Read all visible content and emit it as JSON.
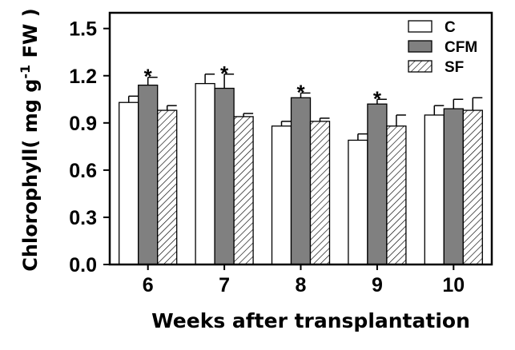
{
  "chart_data": {
    "type": "bar",
    "title": "",
    "xlabel": "Weeks after transplantation",
    "ylabel_main": "Chlorophyll( mg g",
    "ylabel_sup": "-1",
    "ylabel_tail": " FW )",
    "categories": [
      "6",
      "7",
      "8",
      "9",
      "10"
    ],
    "ylim": [
      0,
      1.6
    ],
    "yticks": [
      "0.0",
      "0.3",
      "0.6",
      "0.9",
      "1.2",
      "1.5"
    ],
    "ytick_values": [
      0,
      0.3,
      0.6,
      0.9,
      1.2,
      1.5
    ],
    "legend_position": "top-right",
    "grid": false,
    "series": [
      {
        "name": "C",
        "style": "white",
        "values": [
          1.03,
          1.15,
          0.88,
          0.79,
          0.95
        ],
        "errors": [
          0.04,
          0.06,
          0.03,
          0.04,
          0.06
        ]
      },
      {
        "name": "CFM",
        "style": "gray",
        "values": [
          1.14,
          1.12,
          1.06,
          1.02,
          0.99
        ],
        "errors": [
          0.05,
          0.09,
          0.03,
          0.03,
          0.06
        ]
      },
      {
        "name": "SF",
        "style": "hatched",
        "values": [
          0.98,
          0.94,
          0.91,
          0.88,
          0.98
        ],
        "errors": [
          0.03,
          0.02,
          0.02,
          0.07,
          0.08
        ]
      }
    ],
    "significance": [
      {
        "series": "CFM",
        "category": "6",
        "label": "*"
      },
      {
        "series": "CFM",
        "category": "7",
        "label": "*"
      },
      {
        "series": "CFM",
        "category": "8",
        "label": "*"
      },
      {
        "series": "CFM",
        "category": "9",
        "label": "*"
      }
    ],
    "colors": {
      "gray_fill": "#808080",
      "border": "#000000",
      "white_fill": "#ffffff"
    }
  }
}
